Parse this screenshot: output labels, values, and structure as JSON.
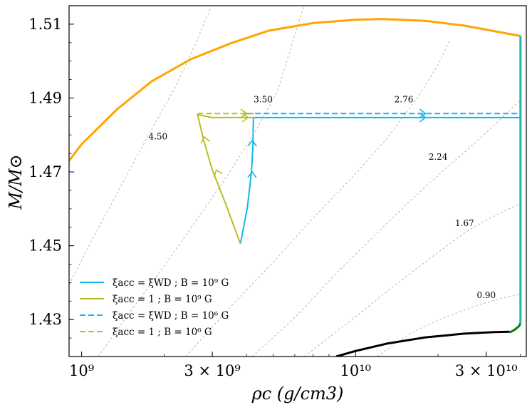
{
  "chart_data": {
    "type": "line",
    "title": "",
    "xlabel": "ρc (g/cm3)",
    "ylabel": "M/M⊙",
    "xscale": "log",
    "xlim": [
      900000000,
      42000000000
    ],
    "ylim": [
      1.42,
      1.515
    ],
    "x_ticks": [
      {
        "value": 1000000000,
        "label": "10⁹"
      },
      {
        "value": 3000000000,
        "label": "3 × 10⁹"
      },
      {
        "value": 10000000000,
        "label": "10¹⁰"
      },
      {
        "value": 30000000000,
        "label": "3 × 10¹⁰"
      }
    ],
    "y_ticks": [
      {
        "value": 1.43,
        "label": "1.43"
      },
      {
        "value": 1.45,
        "label": "1.45"
      },
      {
        "value": 1.47,
        "label": "1.47"
      },
      {
        "value": 1.49,
        "label": "1.49"
      },
      {
        "value": 1.51,
        "label": "1.51"
      }
    ],
    "boundaries": [
      {
        "name": "upper-boundary",
        "color": "#ffa500",
        "width": 3,
        "x": [
          900000000,
          1000000000,
          1350000000,
          1800000000,
          2500000000,
          3500000000,
          4800000000,
          7000000000,
          10000000000,
          12500000000,
          18000000000,
          25000000000,
          40000000000
        ],
        "y": [
          1.473,
          1.4775,
          1.487,
          1.4945,
          1.5005,
          1.5048,
          1.5082,
          1.5103,
          1.5112,
          1.5114,
          1.5109,
          1.5096,
          1.5068
        ]
      },
      {
        "name": "lower-boundary",
        "color": "#000000",
        "width": 3,
        "x": [
          8500000000,
          10000000000,
          13000000000,
          18000000000,
          25000000000,
          32000000000,
          36500000000
        ],
        "y": [
          1.42,
          1.4215,
          1.4235,
          1.4252,
          1.4262,
          1.4266,
          1.4267
        ]
      },
      {
        "name": "green-segment",
        "color": "#008000",
        "width": 3,
        "x": [
          36500000000,
          38000000000,
          39500000000,
          40000000000
        ],
        "y": [
          1.4265,
          1.4272,
          1.4282,
          1.429
        ]
      },
      {
        "name": "teal-vertical",
        "color": "#1ab7b2",
        "width": 3,
        "x": [
          40000000000,
          40000000000
        ],
        "y": [
          1.429,
          1.5068
        ]
      }
    ],
    "contours": [
      {
        "label": "4.50",
        "label_pos": [
          1900000000,
          1.4795
        ],
        "x": [
          900000000,
          1100000000,
          1400000000,
          1800000000,
          2200000000,
          2600000000,
          3000000000
        ],
        "y": [
          1.4395,
          1.452,
          1.4665,
          1.4815,
          1.493,
          1.5045,
          1.5155
        ]
      },
      {
        "label": "3.50",
        "label_pos": [
          4600000000,
          1.4895
        ],
        "x": [
          1150000000,
          1500000000,
          2000000000,
          2600000000,
          3300000000,
          4200000000,
          5200000000,
          6500000000
        ],
        "y": [
          1.42,
          1.432,
          1.4445,
          1.4565,
          1.4675,
          1.4795,
          1.492,
          1.5155
        ]
      },
      {
        "label": "2.76",
        "label_pos": [
          15000000000,
          1.4895
        ],
        "x": [
          2400000000,
          3500000000,
          5000000000,
          7000000000,
          10000000000,
          13000000000,
          17000000000,
          20000000000,
          22000000000
        ],
        "y": [
          1.42,
          1.4335,
          1.4455,
          1.4575,
          1.4695,
          1.479,
          1.4905,
          1.499,
          1.5055
        ]
      },
      {
        "label": "2.24",
        "label_pos": [
          20000000000,
          1.474
        ],
        "x": [
          4200000000,
          6000000000,
          8500000000,
          12000000000,
          16000000000,
          21000000000,
          27000000000,
          33000000000,
          40000000000
        ],
        "y": [
          1.42,
          1.4305,
          1.4425,
          1.4535,
          1.4625,
          1.4705,
          1.4775,
          1.4835,
          1.4895
        ]
      },
      {
        "label": "1.67",
        "label_pos": [
          25000000000,
          1.456
        ],
        "x": [
          6500000000,
          10000000000,
          14000000000,
          19000000000,
          25000000000,
          31000000000,
          40000000000
        ],
        "y": [
          1.42,
          1.4308,
          1.4395,
          1.447,
          1.4535,
          1.4575,
          1.4615
        ]
      },
      {
        "label": "0.90",
        "label_pos": [
          30000000000,
          1.4365
        ],
        "x": [
          12000000000,
          16000000000,
          21000000000,
          27000000000,
          34000000000,
          40000000000
        ],
        "y": [
          1.42,
          1.4265,
          1.4305,
          1.4335,
          1.4358,
          1.4368
        ]
      }
    ],
    "series": [
      {
        "name": "ξacc = ξWD ; B = 10⁹ G",
        "color": "#12b6ee",
        "dash": "solid",
        "x": [
          3800000000,
          4030000000,
          4170000000,
          4220000000,
          4230000000,
          4240000000,
          4260000000,
          40000000000
        ],
        "y": [
          1.4505,
          1.4605,
          1.47,
          1.477,
          1.4815,
          1.4847,
          1.4847,
          1.4847
        ],
        "arrows": [
          {
            "x": 4200000000,
            "y": 1.47
          },
          {
            "x": 4200000000,
            "y": 1.4785
          },
          {
            "x": 18000000000,
            "y": 1.4847
          }
        ]
      },
      {
        "name": "ξacc = 1 ; B = 10⁹ G",
        "color": "#bcbd22",
        "dash": "solid",
        "x": [
          3800000000,
          3350000000,
          3000000000,
          2780000000,
          2650000000,
          3000000000,
          3600000000,
          4260000000
        ],
        "y": [
          1.4505,
          1.4615,
          1.4705,
          1.479,
          1.4855,
          1.4847,
          1.4847,
          1.4847
        ],
        "arrows": [
          {
            "x": 3100000000,
            "y": 1.4705
          },
          {
            "x": 2800000000,
            "y": 1.4795
          },
          {
            "x": 4050000000,
            "y": 1.4847
          }
        ]
      },
      {
        "name": "ξacc = ξWD ; B = 10⁶ G",
        "color": "#12b6ee",
        "dash": "dashed",
        "x": [
          4000000000,
          40000000000
        ],
        "y": [
          1.4858,
          1.4858
        ],
        "arrows": [
          {
            "x": 18000000000,
            "y": 1.4858
          }
        ]
      },
      {
        "name": "ξacc = 1 ; B = 10⁶ G",
        "color": "#bcbd22",
        "dash": "dashed",
        "x": [
          2650000000,
          4250000000
        ],
        "y": [
          1.4858,
          1.4858
        ],
        "arrows": [
          {
            "x": 4000000000,
            "y": 1.4858
          }
        ]
      }
    ],
    "legend": {
      "position": "lower-left",
      "entries": [
        {
          "text": "ξacc = ξWD ; B = 10⁹ G",
          "color": "#12b6ee",
          "dash": "solid"
        },
        {
          "text": "ξacc = 1 ; B = 10⁹ G",
          "color": "#bcbd22",
          "dash": "solid"
        },
        {
          "text": "ξacc = ξWD ; B = 10⁶ G",
          "color": "#12b6ee",
          "dash": "dashed"
        },
        {
          "text": "ξacc = 1 ; B = 10⁶ G",
          "color": "#bcbd22",
          "dash": "dashed"
        }
      ]
    },
    "grid": false
  }
}
